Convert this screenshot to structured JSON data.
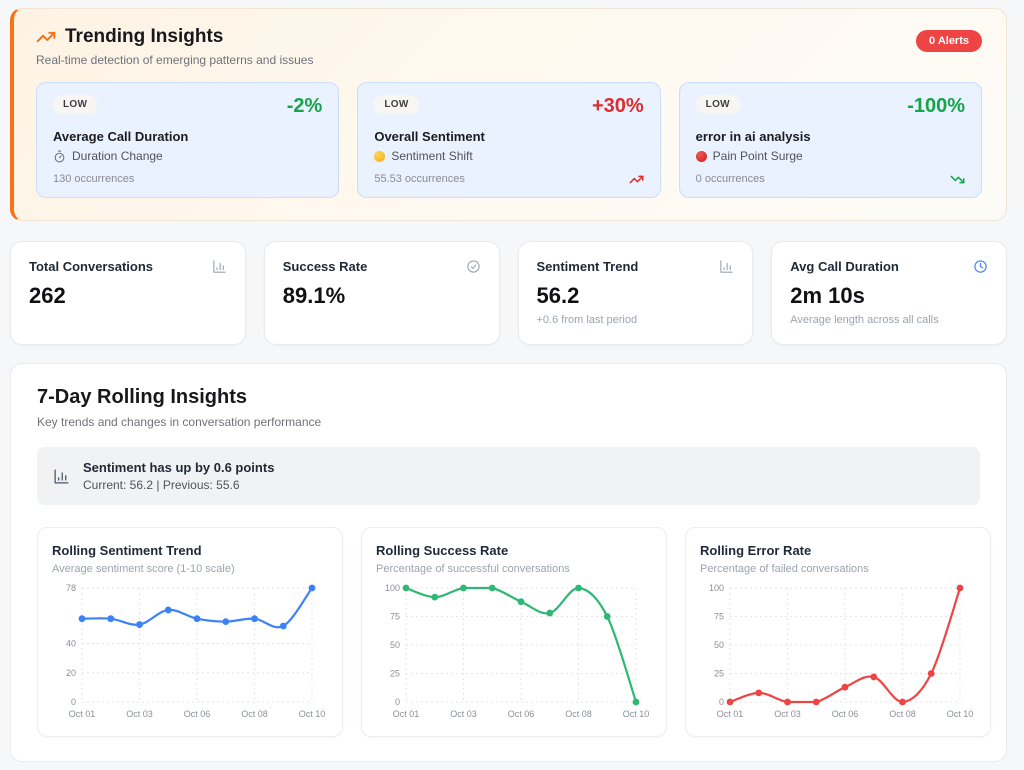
{
  "colors": {
    "accent_orange": "#f97316",
    "alert_red": "#ef4444",
    "positive_green": "#17a34a",
    "negative_red": "#dc2c2c",
    "trend_card_bg": "#e9f2fe"
  },
  "trending": {
    "title": "Trending Insights",
    "subtitle": "Real-time detection of emerging patterns and issues",
    "alerts_badge": "0 Alerts",
    "cards": [
      {
        "severity": "LOW",
        "change": "-2%",
        "change_color": "#17a34a",
        "name": "Average Call Duration",
        "category": "Duration Change",
        "category_icon": "stopwatch-icon",
        "occurrences": "130 occurrences",
        "direction_icon": "none"
      },
      {
        "severity": "LOW",
        "change": "+30%",
        "change_color": "#dc2c2c",
        "name": "Overall Sentiment",
        "category": "Sentiment Shift",
        "category_icon": "neutral-face-icon",
        "occurrences": "55.53 occurrences",
        "direction_icon": "trending-up"
      },
      {
        "severity": "LOW",
        "change": "-100%",
        "change_color": "#17a34a",
        "name": "error in ai analysis",
        "category": "Pain Point Surge",
        "category_icon": "red-dot-icon",
        "occurrences": "0 occurrences",
        "direction_icon": "trending-down"
      }
    ]
  },
  "stats": [
    {
      "title": "Total Conversations",
      "icon": "bar-chart-icon",
      "value": "262",
      "subtitle": ""
    },
    {
      "title": "Success Rate",
      "icon": "check-circle-icon",
      "value": "89.1%",
      "subtitle": ""
    },
    {
      "title": "Sentiment Trend",
      "icon": "bar-chart-icon",
      "value": "56.2",
      "subtitle": "+0.6 from last period"
    },
    {
      "title": "Avg Call Duration",
      "icon": "clock-icon",
      "value": "2m 10s",
      "subtitle": "Average length across all calls"
    }
  ],
  "rolling": {
    "title": "7-Day Rolling Insights",
    "subtitle": "Key trends and changes in conversation performance",
    "summary": {
      "icon": "bar-chart-icon",
      "title": "Sentiment has up by 0.6 points",
      "detail": "Current: 56.2 | Previous: 55.6"
    }
  },
  "chart_data": [
    {
      "type": "line",
      "title": "Rolling Sentiment Trend",
      "subtitle": "Average sentiment score (1-10 scale)",
      "color": "#3b82f6",
      "x": [
        "Oct 01",
        "Oct 02",
        "Oct 03",
        "Oct 05",
        "Oct 06",
        "Oct 07",
        "Oct 08",
        "Oct 09",
        "Oct 10"
      ],
      "values": [
        57,
        57,
        53,
        63,
        57,
        55,
        57,
        52,
        78
      ],
      "ylim": [
        0,
        78
      ],
      "y_ticks": [
        0,
        20,
        40,
        78
      ],
      "x_tick_positions": [
        0,
        2,
        4,
        6,
        8
      ],
      "x_tick_labels": [
        "Oct 01",
        "Oct 03",
        "Oct 06",
        "Oct 08",
        "Oct 10"
      ],
      "grid": true,
      "legend": "none"
    },
    {
      "type": "line",
      "title": "Rolling Success Rate",
      "subtitle": "Percentage of successful conversations",
      "color": "#2eb873",
      "x": [
        "Oct 01",
        "Oct 02",
        "Oct 03",
        "Oct 05",
        "Oct 06",
        "Oct 07",
        "Oct 08",
        "Oct 09",
        "Oct 10"
      ],
      "values": [
        100,
        92,
        100,
        100,
        88,
        78,
        100,
        75,
        0
      ],
      "ylim": [
        0,
        100
      ],
      "y_ticks": [
        0,
        25,
        50,
        75,
        100
      ],
      "x_tick_positions": [
        0,
        2,
        4,
        6,
        8
      ],
      "x_tick_labels": [
        "Oct 01",
        "Oct 03",
        "Oct 06",
        "Oct 08",
        "Oct 10"
      ],
      "grid": true,
      "legend": "none"
    },
    {
      "type": "line",
      "title": "Rolling Error Rate",
      "subtitle": "Percentage of failed conversations",
      "color": "#ef4444",
      "x": [
        "Oct 01",
        "Oct 02",
        "Oct 03",
        "Oct 05",
        "Oct 06",
        "Oct 07",
        "Oct 08",
        "Oct 09",
        "Oct 10"
      ],
      "values": [
        0,
        8,
        0,
        0,
        13,
        22,
        0,
        25,
        100
      ],
      "ylim": [
        0,
        100
      ],
      "y_ticks": [
        0,
        25,
        50,
        75,
        100
      ],
      "x_tick_positions": [
        0,
        2,
        4,
        6,
        8
      ],
      "x_tick_labels": [
        "Oct 01",
        "Oct 03",
        "Oct 06",
        "Oct 08",
        "Oct 10"
      ],
      "grid": true,
      "legend": "none"
    }
  ]
}
